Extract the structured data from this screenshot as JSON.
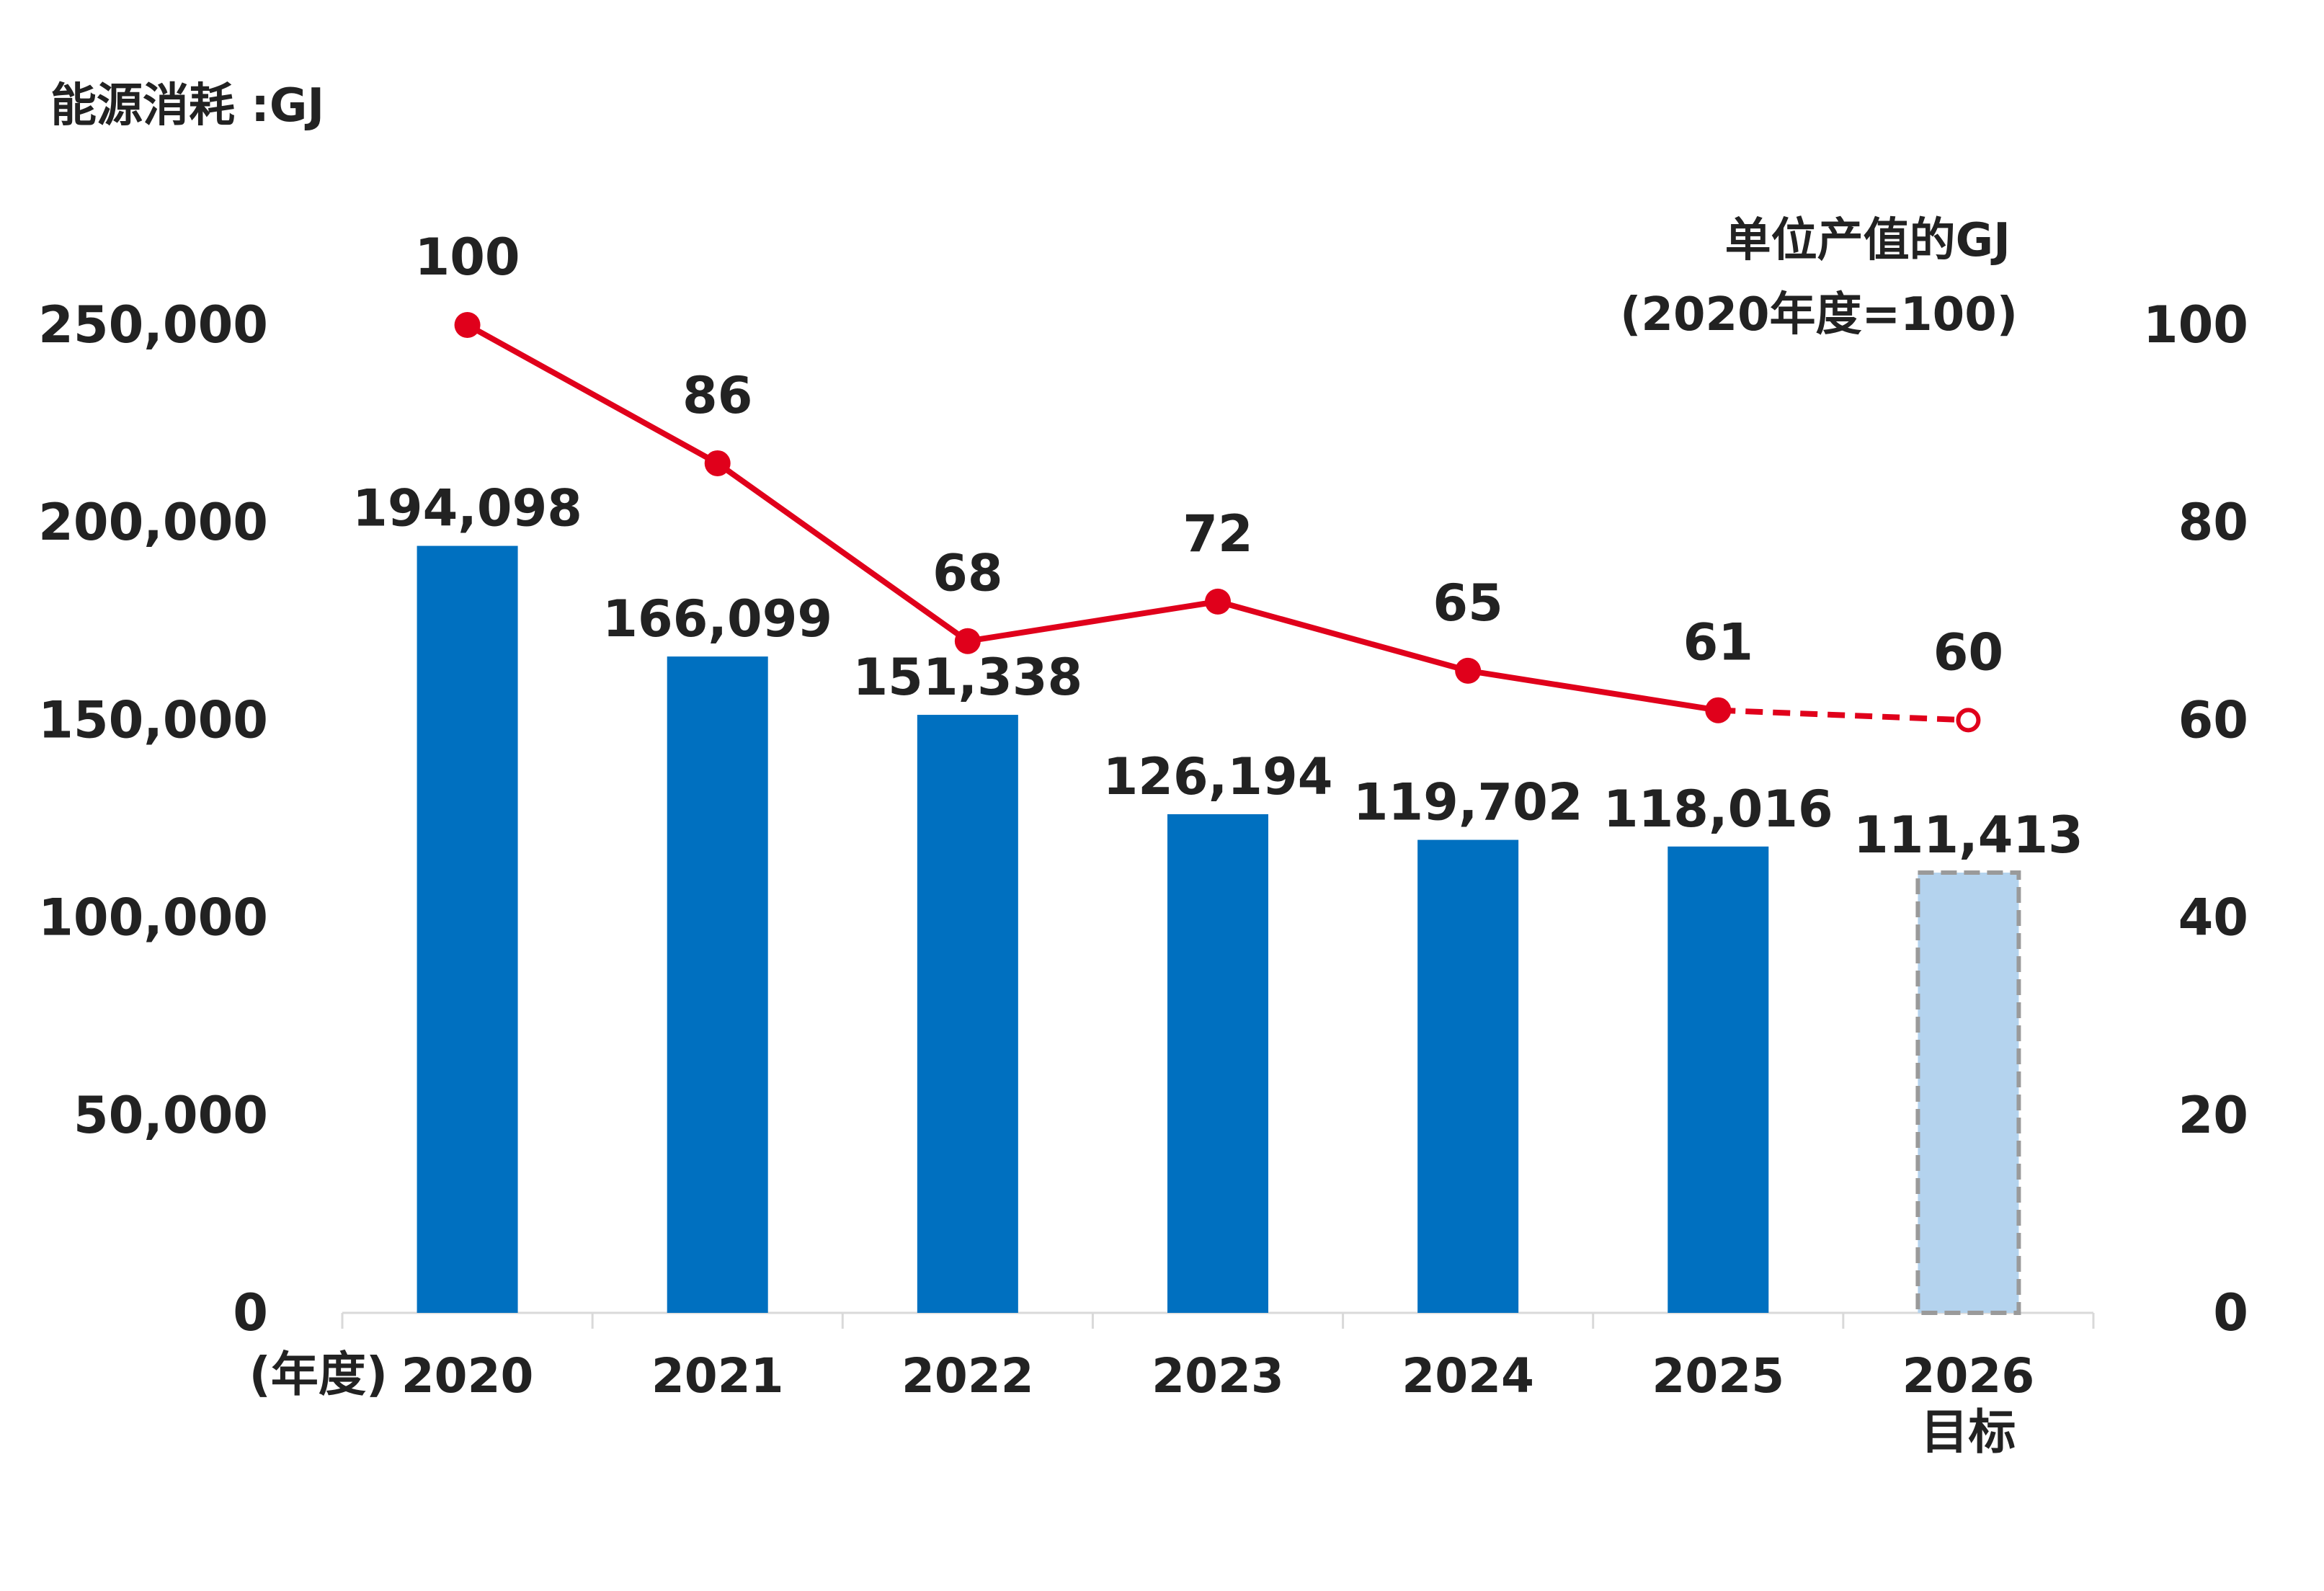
{
  "chart_data": {
    "type": "bar",
    "title": "能源消耗 :GJ",
    "x_axis_label": "(年度)",
    "categories": [
      "2020",
      "2021",
      "2022",
      "2023",
      "2024",
      "2025",
      "2026"
    ],
    "category_sublabels": [
      "",
      "",
      "",
      "",
      "",
      "",
      "目标"
    ],
    "y_left": {
      "ticks": [
        "0",
        "50,000",
        "100,000",
        "150,000",
        "200,000",
        "250,000"
      ],
      "range": [
        0,
        250000
      ]
    },
    "y_right": {
      "label_line1": "单位产值的GJ",
      "label_line2": "(2020年度=100)",
      "ticks": [
        "0",
        "20",
        "40",
        "60",
        "80",
        "100"
      ],
      "range": [
        0,
        100
      ]
    },
    "series": [
      {
        "type": "bar",
        "axis": "left",
        "values": [
          194098,
          166099,
          151338,
          126194,
          119702,
          118016,
          111413
        ],
        "labels": [
          "194,098",
          "166,099",
          "151,338",
          "126,194",
          "119,702",
          "118,016",
          "111,413"
        ],
        "color": "#0070C0",
        "target_color": "#B4D3EE",
        "target_border": "#9A9A9A",
        "target_index": 6
      },
      {
        "type": "line",
        "axis": "right",
        "values": [
          100,
          86,
          68,
          72,
          65,
          61,
          60
        ],
        "labels": [
          "100",
          "86",
          "68",
          "72",
          "65",
          "61",
          "60"
        ],
        "color": "#E0001B",
        "dashed_from_index": 5
      }
    ]
  }
}
